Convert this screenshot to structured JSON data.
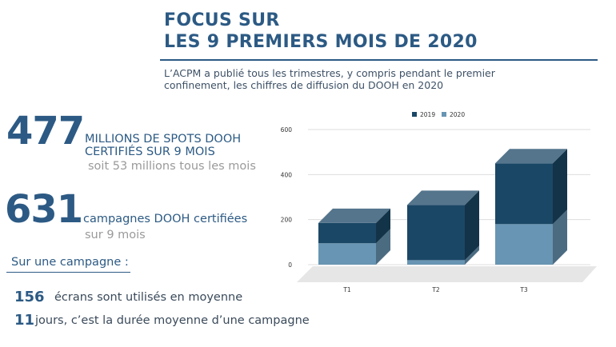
{
  "header": {
    "title_line1": "FOCUS SUR",
    "title_line2": "LES 9 PREMIERS MOIS DE 2020",
    "subtitle_line1": "L’ACPM a publié tous les trimestres, y compris pendant le premier",
    "subtitle_line2": "confinement, les chiffres de diffusion du DOOH en 2020"
  },
  "stats": {
    "spots": {
      "number": "477",
      "caption_line1": "MILLIONS DE SPOTS DOOH",
      "caption_line2": "CERTIFIÉS SUR 9 MOIS",
      "sub": "soit 53 millions tous les mois"
    },
    "campaigns": {
      "number": "631",
      "caption": "campagnes DOOH certifiées",
      "sub": "sur 9 mois"
    }
  },
  "campaign_section": {
    "label": "Sur une campagne :",
    "facts": [
      {
        "number": "156",
        "text": "écrans sont utilisés en moyenne"
      },
      {
        "number": "11",
        "text": "jours, c’est la durée moyenne d’une campagne"
      }
    ]
  },
  "colors": {
    "series_2019": "#1b4766",
    "series_2020": "#6895b3",
    "accent": "#2c5a84"
  },
  "chart_data": {
    "type": "bar",
    "stacked": true,
    "style": "3d",
    "categories": [
      "T1",
      "T2",
      "T3"
    ],
    "series": [
      {
        "name": "2019",
        "values": [
          90,
          245,
          270
        ]
      },
      {
        "name": "2020",
        "values": [
          95,
          20,
          180
        ]
      }
    ],
    "ylim": [
      0,
      600
    ],
    "yticks": [
      0,
      200,
      400,
      600
    ],
    "grid": true,
    "legend_position": "top"
  }
}
